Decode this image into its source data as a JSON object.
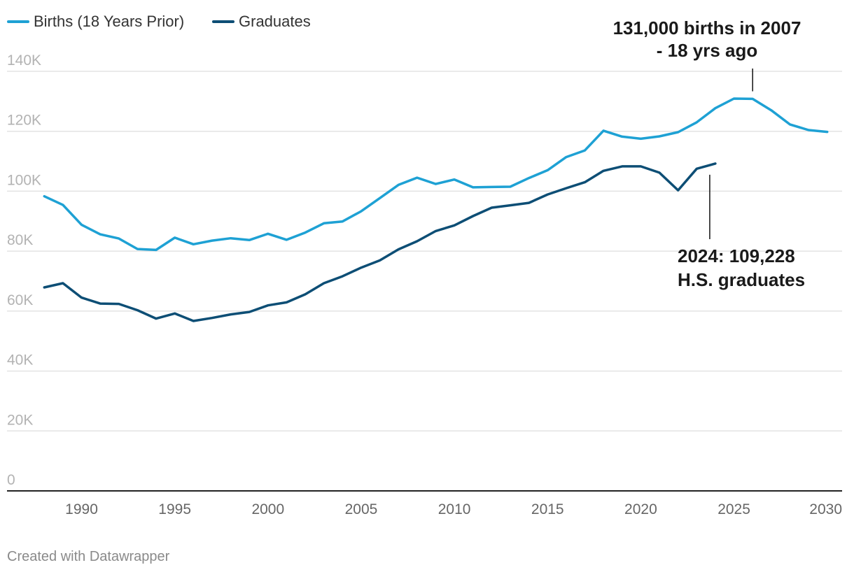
{
  "chart_data": {
    "type": "line",
    "title": "",
    "xlabel": "",
    "ylabel": "",
    "xlim": [
      1986,
      2030.8
    ],
    "ylim": [
      0,
      140000
    ],
    "grid": true,
    "legend_position": "top-left",
    "x_ticks": [
      1990,
      1995,
      2000,
      2005,
      2010,
      2015,
      2020,
      2025,
      2030
    ],
    "x_tick_labels": [
      "1990",
      "1995",
      "2000",
      "2005",
      "2010",
      "2015",
      "2020",
      "2025",
      "2030"
    ],
    "y_ticks": [
      0,
      20000,
      40000,
      60000,
      80000,
      100000,
      120000,
      140000
    ],
    "y_tick_labels": [
      "0",
      "20K",
      "40K",
      "60K",
      "80K",
      "100K",
      "120K",
      "140K"
    ],
    "series": [
      {
        "name": "Births (18 Years Prior)",
        "color": "#1ea1d4",
        "x": [
          1988,
          1989,
          1990,
          1991,
          1992,
          1993,
          1994,
          1995,
          1996,
          1997,
          1998,
          1999,
          2000,
          2001,
          2002,
          2003,
          2004,
          2005,
          2006,
          2007,
          2008,
          2009,
          2010,
          2011,
          2012,
          2013,
          2014,
          2015,
          2016,
          2017,
          2018,
          2019,
          2020,
          2021,
          2022,
          2023,
          2024,
          2025,
          2026,
          2027,
          2028,
          2029,
          2030
        ],
        "y": [
          98300,
          95400,
          88800,
          85600,
          84200,
          80700,
          80400,
          84500,
          82300,
          83500,
          84300,
          83700,
          85800,
          83800,
          86200,
          89300,
          89900,
          93300,
          97700,
          102100,
          104500,
          102400,
          103900,
          101300,
          101400,
          101500,
          104400,
          107000,
          111400,
          113600,
          120200,
          118200,
          117500,
          118300,
          119700,
          123000,
          127700,
          130900,
          130800,
          127000,
          122300,
          120400,
          119800
        ]
      },
      {
        "name": "Graduates",
        "color": "#0d4e75",
        "x": [
          1988,
          1989,
          1990,
          1991,
          1992,
          1993,
          1994,
          1995,
          1996,
          1997,
          1998,
          1999,
          2000,
          2001,
          2002,
          2003,
          2004,
          2005,
          2006,
          2007,
          2008,
          2009,
          2010,
          2011,
          2012,
          2013,
          2014,
          2015,
          2016,
          2017,
          2018,
          2019,
          2020,
          2021,
          2022,
          2023,
          2024
        ],
        "y": [
          67900,
          69300,
          64500,
          62500,
          62400,
          60300,
          57500,
          59200,
          56700,
          57700,
          58900,
          59700,
          61900,
          62900,
          65600,
          69300,
          71600,
          74500,
          76900,
          80600,
          83300,
          86700,
          88600,
          91700,
          94500,
          95300,
          96100,
          98900,
          101000,
          103000,
          106800,
          108300,
          108300,
          106200,
          100300,
          107500,
          109228
        ]
      }
    ],
    "annotations": [
      {
        "id": "peak",
        "line1": "131,000 births in 2007",
        "line2": "- 18 yrs ago",
        "x": 2026,
        "y": 131000
      },
      {
        "id": "grads",
        "line1": "2024: 109,228",
        "line2": "H.S. graduates",
        "x": 2024,
        "y": 109228
      }
    ]
  },
  "legend": [
    {
      "label": "Births (18 Years Prior)",
      "color": "#1ea1d4"
    },
    {
      "label": "Graduates",
      "color": "#0d4e75"
    }
  ],
  "footer": {
    "credit": "Created with Datawrapper"
  }
}
